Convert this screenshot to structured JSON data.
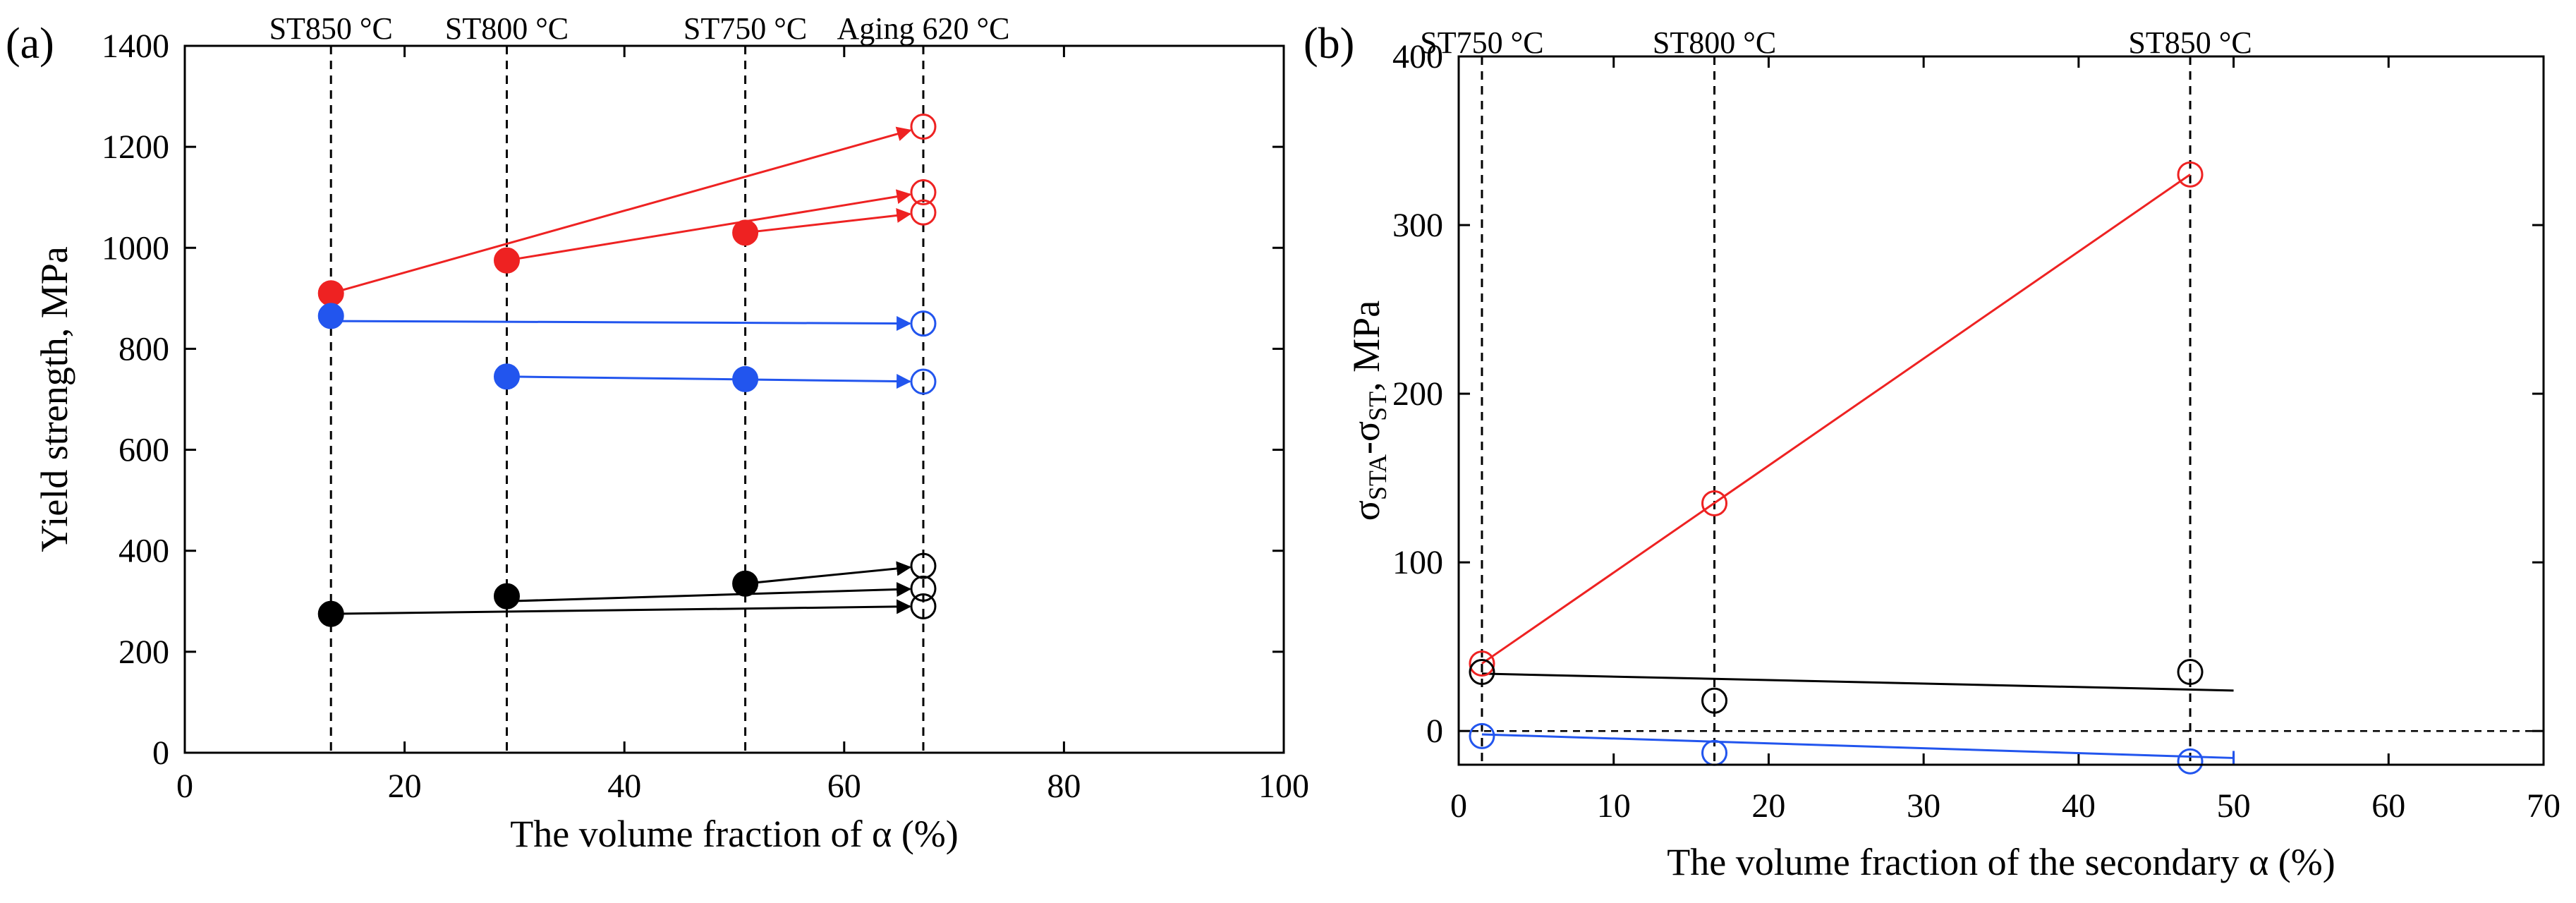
{
  "figure": {
    "panels": [
      "(a)",
      "(b)"
    ]
  },
  "chart_data": [
    {
      "type": "scatter",
      "panel_label": "(a)",
      "title": "",
      "xlabel": "The volume fraction of α (%)",
      "ylabel": "Yield strength, MPa",
      "xlim": [
        0,
        100
      ],
      "ylim": [
        0,
        1400
      ],
      "xticks": [
        0,
        20,
        40,
        60,
        80,
        100
      ],
      "yticks": [
        0,
        200,
        400,
        600,
        800,
        1000,
        1200,
        1400
      ],
      "vlines": [
        {
          "x": 13.3,
          "label": "ST850 °C"
        },
        {
          "x": 29.3,
          "label": "ST800 °C"
        },
        {
          "x": 51,
          "label": "ST750 °C"
        },
        {
          "x": 67.2,
          "label": "Aging 620 °C"
        }
      ],
      "colors": {
        "red": "#ee2222",
        "blue": "#2255ee",
        "black": "#000000"
      },
      "series": [
        {
          "name": "red-solution-treated",
          "color": "red",
          "marker": "filled",
          "points": [
            [
              13.3,
              910
            ],
            [
              29.3,
              975
            ],
            [
              51,
              1030
            ]
          ]
        },
        {
          "name": "red-aged",
          "color": "red",
          "marker": "open",
          "points": [
            [
              67.2,
              1240
            ],
            [
              67.2,
              1110
            ],
            [
              67.2,
              1070
            ]
          ]
        },
        {
          "name": "blue-solution-treated",
          "color": "blue",
          "marker": "filled",
          "points": [
            [
              13.3,
              865
            ],
            [
              29.3,
              745
            ],
            [
              51,
              740
            ]
          ]
        },
        {
          "name": "blue-aged",
          "color": "blue",
          "marker": "open",
          "points": [
            [
              67.2,
              850
            ],
            [
              67.2,
              735
            ]
          ]
        },
        {
          "name": "black-solution-treated",
          "color": "black",
          "marker": "filled",
          "points": [
            [
              13.3,
              275
            ],
            [
              29.3,
              310
            ],
            [
              51,
              335
            ]
          ]
        },
        {
          "name": "black-aged",
          "color": "black",
          "marker": "open",
          "points": [
            [
              67.2,
              370
            ],
            [
              67.2,
              325
            ],
            [
              67.2,
              290
            ]
          ]
        }
      ],
      "arrows": [
        {
          "color": "red",
          "from": [
            13.3,
            910
          ],
          "to": [
            67.2,
            1240
          ]
        },
        {
          "color": "red",
          "from": [
            29.3,
            975
          ],
          "to": [
            67.2,
            1110
          ]
        },
        {
          "color": "red",
          "from": [
            51,
            1030
          ],
          "to": [
            67.2,
            1070
          ]
        },
        {
          "color": "blue",
          "from": [
            13.3,
            855
          ],
          "to": [
            67.2,
            850
          ]
        },
        {
          "color": "blue",
          "from": [
            29.3,
            745
          ],
          "to": [
            67.2,
            735
          ]
        },
        {
          "color": "black",
          "from": [
            51,
            335
          ],
          "to": [
            67.2,
            370
          ]
        },
        {
          "color": "black",
          "from": [
            29.3,
            300
          ],
          "to": [
            67.2,
            325
          ]
        },
        {
          "color": "black",
          "from": [
            13.3,
            275
          ],
          "to": [
            67.2,
            290
          ]
        }
      ]
    },
    {
      "type": "scatter",
      "panel_label": "(b)",
      "title": "",
      "xlabel": "The volume fraction of the secondary α (%)",
      "ylabel_main": "σ",
      "ylabel_sub1": "STA",
      "ylabel_mid": "-σ",
      "ylabel_sub2": "ST",
      "ylabel_tail": ", MPa",
      "xlim": [
        0,
        70
      ],
      "ylim": [
        -20,
        400
      ],
      "xticks": [
        0,
        10,
        20,
        30,
        40,
        50,
        60,
        70
      ],
      "yticks": [
        0,
        100,
        200,
        300,
        400
      ],
      "zero_line": true,
      "vlines": [
        {
          "x": 1.5,
          "label": "ST750 °C"
        },
        {
          "x": 16.5,
          "label": "ST800 °C"
        },
        {
          "x": 47.2,
          "label": "ST850 °C"
        }
      ],
      "colors": {
        "red": "#ee2222",
        "blue": "#2255ee",
        "black": "#000000"
      },
      "series": [
        {
          "name": "red",
          "color": "red",
          "marker": "open",
          "points": [
            [
              1.5,
              40
            ],
            [
              16.5,
              135
            ],
            [
              47.2,
              330
            ]
          ],
          "fit": [
            [
              1.5,
              40
            ],
            [
              47.2,
              330
            ]
          ]
        },
        {
          "name": "black",
          "color": "black",
          "marker": "open",
          "points": [
            [
              1.5,
              35
            ],
            [
              16.5,
              18
            ],
            [
              47.2,
              35
            ]
          ],
          "fit": [
            [
              1.5,
              34
            ],
            [
              50,
              24
            ]
          ]
        },
        {
          "name": "blue",
          "color": "blue",
          "marker": "open",
          "points": [
            [
              1.5,
              -3
            ],
            [
              16.5,
              -13
            ],
            [
              47.2,
              -18
            ]
          ],
          "fit": [
            [
              1.5,
              -2
            ],
            [
              50,
              -16
            ]
          ]
        }
      ]
    }
  ]
}
